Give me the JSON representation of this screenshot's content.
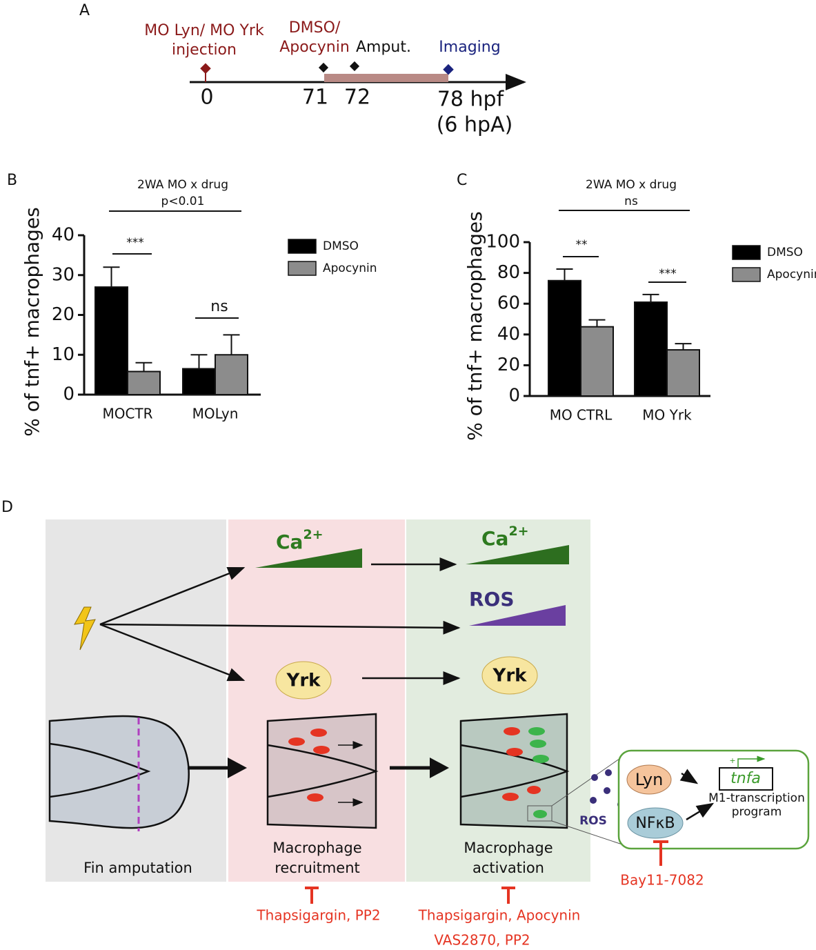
{
  "panel_a": {
    "label": "A",
    "events": [
      {
        "lines": [
          "MO Lyn/ MO Yrk",
          "injection"
        ]
      },
      {
        "lines": [
          "DMSO/",
          "Apocynin"
        ]
      },
      {
        "lines": [
          "Amput."
        ]
      },
      {
        "lines": [
          "Imaging"
        ]
      }
    ],
    "times": [
      "0",
      "71",
      "72",
      "78 hpf",
      "(6 hpA)"
    ]
  },
  "chart_data": [
    {
      "type": "bar",
      "panel": "B",
      "y_label": "% of tnf+ macrophages",
      "categories": [
        "MOCTR",
        "MOLyn"
      ],
      "series": [
        {
          "name": "DMSO",
          "color": "#000000",
          "values": [
            27,
            6.5
          ],
          "errors": [
            5,
            3.5
          ]
        },
        {
          "name": "Apocynin",
          "color": "#8c8c8c",
          "values": [
            5.8,
            10
          ],
          "errors": [
            2.2,
            5
          ]
        }
      ],
      "ylim": [
        0,
        40
      ],
      "yticks": [
        0,
        10,
        20,
        30,
        40
      ],
      "annotations": [
        "2WA MO x drug",
        "p<0.01",
        "***",
        "ns"
      ]
    },
    {
      "type": "bar",
      "panel": "C",
      "y_label": "% of tnf+ macrophages",
      "categories": [
        "MO CTRL",
        "MO Yrk"
      ],
      "series": [
        {
          "name": "DMSO",
          "color": "#000000",
          "values": [
            75,
            61
          ],
          "errors": [
            7.5,
            5
          ]
        },
        {
          "name": "Apocynin",
          "color": "#8c8c8c",
          "values": [
            45,
            30
          ],
          "errors": [
            4.5,
            4
          ]
        }
      ],
      "ylim": [
        0,
        100
      ],
      "yticks": [
        0,
        20,
        40,
        60,
        80,
        100
      ],
      "annotations": [
        "2WA MO x drug",
        "ns",
        "**",
        "***"
      ]
    }
  ],
  "panel_d": {
    "label": "D",
    "ca": "Ca",
    "ca_charge": "2+",
    "ros": "ROS",
    "yrk": "Yrk",
    "lyn": "Lyn",
    "nfkb": "NFκB",
    "gene": "tnfa",
    "plus": "+",
    "program": [
      "M1-transcription",
      "program"
    ],
    "stages": [
      [
        "Fin amputation"
      ],
      [
        "Macrophage",
        "recruitment"
      ],
      [
        "Macrophage",
        "activation"
      ]
    ],
    "inhibitors": [
      [
        "Thapsigargin, PP2"
      ],
      [
        "Thapsigargin, Apocynin",
        "VAS2870, PP2"
      ],
      [
        "Bay11-7082"
      ]
    ]
  }
}
